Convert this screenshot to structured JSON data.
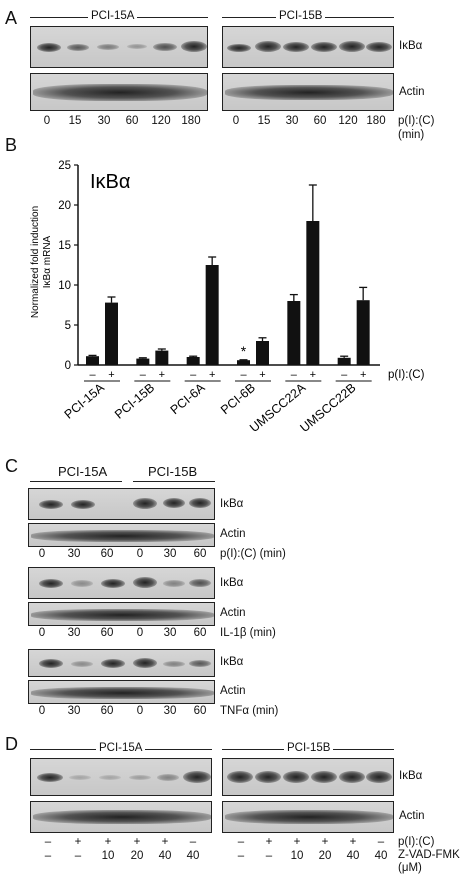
{
  "panelA": {
    "letter": "A",
    "groups": [
      "PCI-15A",
      "PCI-15B"
    ],
    "labels": [
      "IκBα",
      "Actin"
    ],
    "times": [
      "0",
      "15",
      "30",
      "60",
      "120",
      "180"
    ],
    "treatment": "p(I):(C)",
    "unit": "(min)"
  },
  "panelB": {
    "letter": "B"
  },
  "chart_data": {
    "type": "bar",
    "title": "IκBα",
    "ylabel": "Normalized fold induction IκBα mRNA",
    "ylabel_line1": "Normalized fold induction",
    "ylabel_line2": "IκBα mRNA",
    "ylim": [
      0,
      25
    ],
    "yticks": [
      "0",
      "5",
      "10",
      "15",
      "20",
      "25"
    ],
    "categories": [
      "PCI-15A",
      "PCI-15B",
      "PCI-6A",
      "PCI-6B",
      "UMSCC22A",
      "UMSCC22B"
    ],
    "treatment_label": "p(I):(C)",
    "signs": [
      "–",
      "+"
    ],
    "significance_marker": "*",
    "series": [
      {
        "values": [
          1.1,
          0.8,
          1.0,
          0.6,
          8.0,
          0.9
        ],
        "errors": [
          0.1,
          0.1,
          0.1,
          0.05,
          0.8,
          0.2
        ]
      },
      {
        "values": [
          7.8,
          1.8,
          12.5,
          3.0,
          18.0,
          8.1
        ],
        "errors": [
          0.7,
          0.2,
          1.0,
          0.4,
          4.5,
          1.6
        ]
      }
    ]
  },
  "panelC": {
    "letter": "C",
    "groups": [
      "PCI-15A",
      "PCI-15B"
    ],
    "labels": [
      "IκBα",
      "Actin"
    ],
    "times": [
      "0",
      "30",
      "60",
      "0",
      "30",
      "60"
    ],
    "treatments": [
      "p(I):(C) (min)",
      "IL-1β (min)",
      "TNFα (min)"
    ]
  },
  "panelD": {
    "letter": "D",
    "groups": [
      "PCI-15A",
      "PCI-15B"
    ],
    "labels": [
      "IκBα",
      "Actin"
    ],
    "pic_signs": [
      "–",
      "+",
      "+",
      "+",
      "+",
      "–"
    ],
    "zvad_values": [
      "–",
      "–",
      "10",
      "20",
      "40",
      "40"
    ],
    "treatment": "p(I):(C)",
    "inhibitor": "Z-VAD-FMK",
    "unit": "(μM)"
  }
}
